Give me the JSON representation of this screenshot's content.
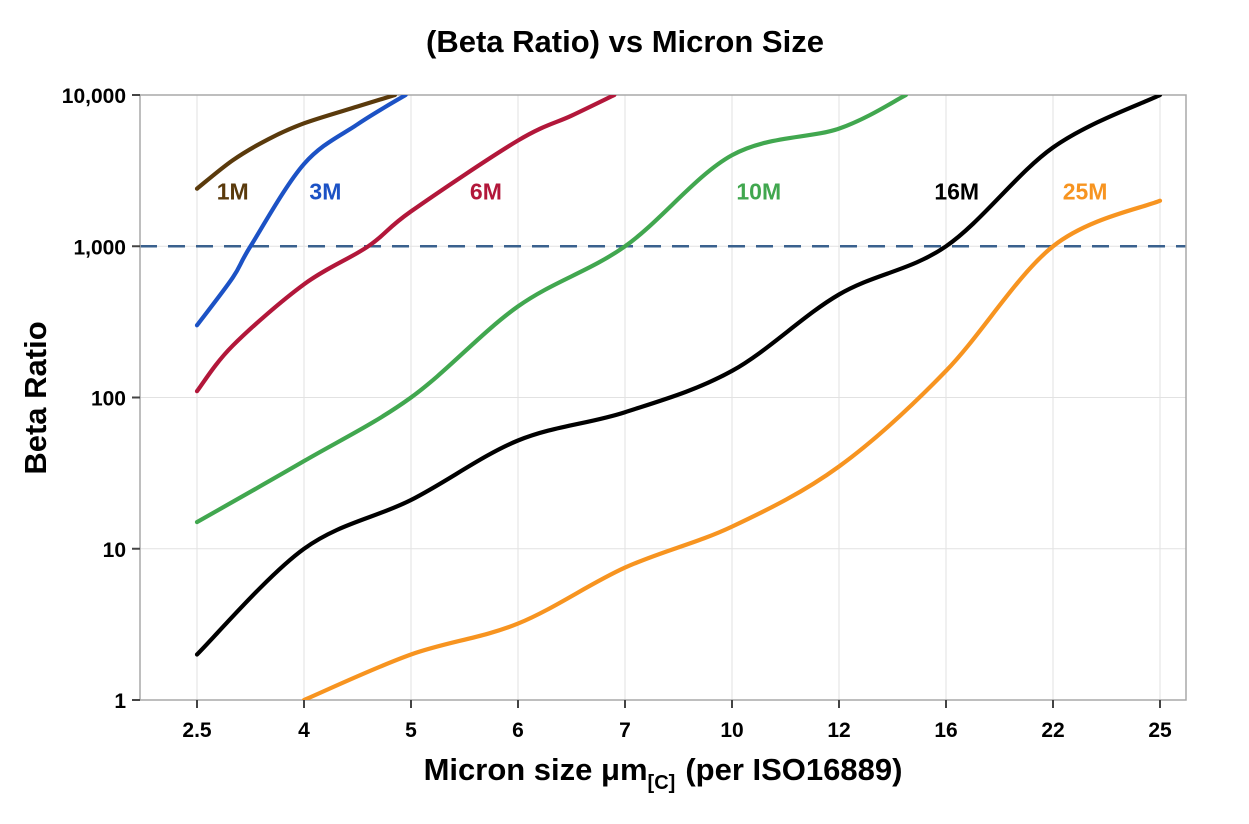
{
  "page": {
    "background": "#ffffff"
  },
  "chart_data": {
    "type": "line",
    "title": "(Beta Ratio) vs Micron Size",
    "ylabel": "Beta Ratio",
    "xlabel": {
      "main": "Micron size μm",
      "sub": "[C]",
      "rest": "(per ISO16889)"
    },
    "x_categories": [
      "2.5",
      "4",
      "5",
      "6",
      "7",
      "10",
      "12",
      "16",
      "22",
      "25"
    ],
    "x_values": [
      2.5,
      4,
      5,
      6,
      7,
      10,
      12,
      16,
      22,
      25
    ],
    "y_ticks": [
      "1",
      "10",
      "100",
      "1,000",
      "10,000"
    ],
    "y_tick_values": [
      1,
      10,
      100,
      1000,
      10000
    ],
    "y_scale": "log",
    "ylim": [
      1,
      10000
    ],
    "grid": true,
    "grid_color": "#e2e2e2",
    "frame_color": "#a8a8a8",
    "threshold_line": {
      "y": 1000,
      "style": "dashed",
      "color": "#3A618E"
    },
    "series": [
      {
        "name": "1M",
        "color": "#5A3A0C",
        "label_pos": {
          "x": 3.0,
          "y": 2300
        },
        "points": [
          [
            2.5,
            2400
          ],
          [
            3,
            3700
          ],
          [
            3.5,
            5100
          ],
          [
            4,
            6500
          ],
          [
            4.5,
            8400
          ],
          [
            4.85,
            10000
          ]
        ]
      },
      {
        "name": "3M",
        "color": "#1C52C5",
        "label_pos": {
          "x": 4.2,
          "y": 2300
        },
        "points": [
          [
            2.5,
            300
          ],
          [
            3,
            620
          ],
          [
            3.25,
            1000
          ],
          [
            4,
            3500
          ],
          [
            4.5,
            6400
          ],
          [
            4.95,
            10000
          ]
        ]
      },
      {
        "name": "6M",
        "color": "#B2173A",
        "label_pos": {
          "x": 5.7,
          "y": 2300
        },
        "points": [
          [
            2.5,
            110
          ],
          [
            3,
            220
          ],
          [
            4,
            560
          ],
          [
            4.6,
            1000
          ],
          [
            5,
            1700
          ],
          [
            6,
            5000
          ],
          [
            6.5,
            7300
          ],
          [
            6.9,
            10000
          ]
        ]
      },
      {
        "name": "10M",
        "color": "#41A74F",
        "label_pos": {
          "x": 10.5,
          "y": 2300
        },
        "points": [
          [
            2.5,
            15
          ],
          [
            4,
            38
          ],
          [
            5,
            100
          ],
          [
            6,
            400
          ],
          [
            7,
            1000
          ],
          [
            10,
            4000
          ],
          [
            12,
            6000
          ],
          [
            14.5,
            10000
          ]
        ]
      },
      {
        "name": "16M",
        "color": "#000000",
        "label_pos": {
          "x": 16.6,
          "y": 2300
        },
        "points": [
          [
            2.5,
            2
          ],
          [
            4,
            10
          ],
          [
            5,
            21
          ],
          [
            6,
            52
          ],
          [
            7,
            80
          ],
          [
            10,
            150
          ],
          [
            12,
            480
          ],
          [
            16,
            1000
          ],
          [
            22,
            4500
          ],
          [
            25,
            10000
          ]
        ]
      },
      {
        "name": "25M",
        "color": "#F79420",
        "label_pos": {
          "x": 22.9,
          "y": 2300
        },
        "points": [
          [
            4,
            1
          ],
          [
            5,
            2
          ],
          [
            6,
            3.2
          ],
          [
            7,
            7.5
          ],
          [
            10,
            14
          ],
          [
            12,
            35
          ],
          [
            16,
            150
          ],
          [
            22,
            1000
          ],
          [
            25,
            2000
          ]
        ]
      }
    ]
  }
}
